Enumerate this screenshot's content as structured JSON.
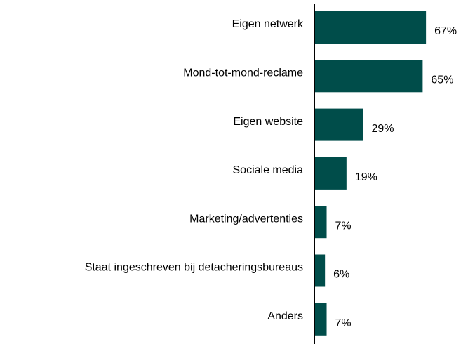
{
  "chart_data": {
    "type": "barh",
    "categories": [
      "Eigen netwerk",
      "Mond-tot-mond-reclame",
      "Eigen website",
      "Sociale media",
      "Marketing/advertenties",
      "Staat ingeschreven bij detacheringsbureaus",
      "Anders"
    ],
    "values": [
      67,
      65,
      29,
      19,
      7,
      6,
      7
    ],
    "value_labels": [
      "67%",
      "65%",
      "29%",
      "19%",
      "7%",
      "6%",
      "7%"
    ],
    "color": "#004d4a"
  }
}
